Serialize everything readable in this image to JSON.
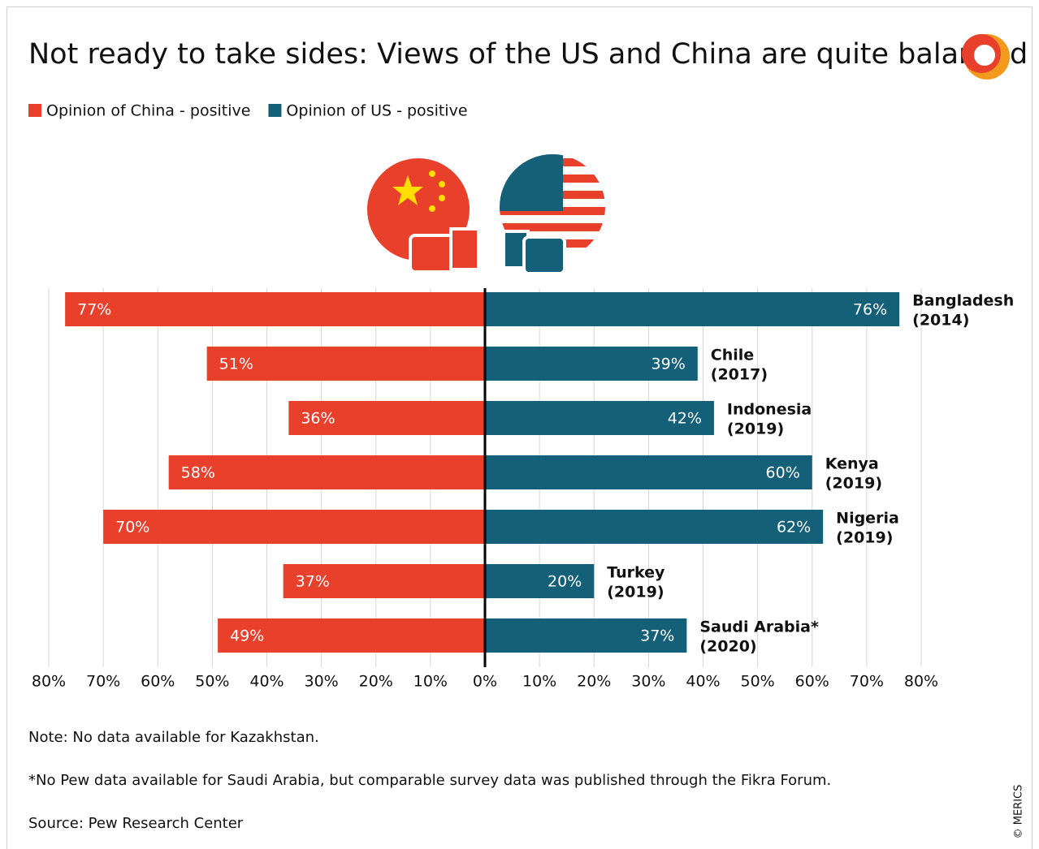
{
  "chart_data": {
    "type": "butterfly",
    "title": "Not ready to take sides: Views of the US and China are quite balanced",
    "categories": [
      "Bangladesh",
      "Chile",
      "Indonesia",
      "Kenya",
      "Nigeria",
      "Turkey",
      "Saudi Arabia*"
    ],
    "category_years": [
      "(2014)",
      "(2017)",
      "(2019)",
      "(2019)",
      "(2019)",
      "(2019)",
      "(2020)"
    ],
    "series": [
      {
        "name": "Opinion of China - positive",
        "color": "#e8402b",
        "side": "left",
        "values": [
          77,
          51,
          36,
          58,
          70,
          37,
          49
        ],
        "value_labels": [
          "77%",
          "51%",
          "36%",
          "58%",
          "70%",
          "37%",
          "49%"
        ]
      },
      {
        "name": "Opinion of US - positive",
        "color": "#136078",
        "side": "right",
        "values": [
          76,
          39,
          42,
          60,
          62,
          20,
          37
        ],
        "value_labels": [
          "76%",
          "39%",
          "42%",
          "60%",
          "62%",
          "20%",
          "37%"
        ]
      }
    ],
    "xlim": [
      0,
      80
    ],
    "xticks": [
      {
        "value": 0,
        "label": "0%"
      },
      {
        "value": 10,
        "label": "10%"
      },
      {
        "value": 20,
        "label": "20%"
      },
      {
        "value": 30,
        "label": "30%"
      },
      {
        "value": 40,
        "label": "40%"
      },
      {
        "value": 50,
        "label": "50%"
      },
      {
        "value": 60,
        "label": "60%"
      },
      {
        "value": 70,
        "label": "70%"
      },
      {
        "value": 80,
        "label": "80%"
      }
    ],
    "grid": true,
    "legend": "top-left",
    "notes": [
      "Note: No data available for Kazakhstan.",
      "*No Pew data available for Saudi Arabia, but comparable survey data was published through the Fikra Forum.",
      "Source: Pew Research Center"
    ],
    "credit": "© MERICS"
  }
}
